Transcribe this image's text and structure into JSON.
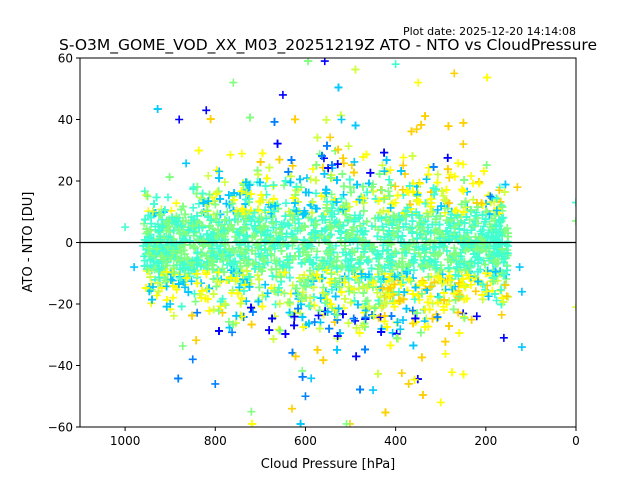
{
  "plot_date": "Plot date: 2025-12-20 14:14:08",
  "chart_data": {
    "type": "scatter",
    "title": "S-O3M_GOME_VOD_XX_M03_20251219Z ATO - NTO vs CloudPressure",
    "xlabel": "Cloud Pressure [hPa]",
    "ylabel": "ATO - NTO [DU]",
    "xlim": [
      1100,
      0
    ],
    "ylim": [
      -60,
      60
    ],
    "x_ticks": [
      1000,
      800,
      600,
      400,
      200,
      0
    ],
    "y_ticks": [
      -60,
      -40,
      -20,
      0,
      20,
      40,
      60
    ],
    "reference_line_y": 0,
    "marker": "+",
    "colormap_colors": [
      "#0000ff",
      "#0080ff",
      "#00c8ff",
      "#40ffd0",
      "#80ff80",
      "#d0ff40",
      "#ffff00",
      "#ffd000"
    ],
    "dense_region": {
      "x_range": [
        960,
        150
      ],
      "core_y_range": [
        -12,
        12
      ],
      "spread_y_range": [
        -60,
        60
      ]
    },
    "sample_points": [
      {
        "x": 1000,
        "y": 5,
        "c": "#40ffd0"
      },
      {
        "x": 980,
        "y": -8,
        "c": "#00c8ff"
      },
      {
        "x": 950,
        "y": 15,
        "c": "#80ff80"
      },
      {
        "x": 900,
        "y": -20,
        "c": "#00c8ff"
      },
      {
        "x": 880,
        "y": 40,
        "c": "#0000ff"
      },
      {
        "x": 850,
        "y": -38,
        "c": "#0080ff"
      },
      {
        "x": 820,
        "y": 43,
        "c": "#0000ff"
      },
      {
        "x": 800,
        "y": -46,
        "c": "#0080ff"
      },
      {
        "x": 760,
        "y": 52,
        "c": "#80ff80"
      },
      {
        "x": 720,
        "y": -55,
        "c": "#80ff80"
      },
      {
        "x": 650,
        "y": 48,
        "c": "#0000ff"
      },
      {
        "x": 600,
        "y": -50,
        "c": "#0080ff"
      },
      {
        "x": 520,
        "y": 40,
        "c": "#00c8ff"
      },
      {
        "x": 450,
        "y": -48,
        "c": "#00c8ff"
      },
      {
        "x": 400,
        "y": 58,
        "c": "#40ffd0"
      },
      {
        "x": 350,
        "y": 52,
        "c": "#ffff00"
      },
      {
        "x": 300,
        "y": -52,
        "c": "#ffff00"
      },
      {
        "x": 270,
        "y": 55,
        "c": "#ffd000"
      },
      {
        "x": 250,
        "y": 32,
        "c": "#ffd000"
      },
      {
        "x": 220,
        "y": -24,
        "c": "#0000ff"
      },
      {
        "x": 190,
        "y": 15,
        "c": "#0080ff"
      },
      {
        "x": 160,
        "y": -31,
        "c": "#0000ff"
      },
      {
        "x": 130,
        "y": 18,
        "c": "#ffd000"
      },
      {
        "x": 125,
        "y": -8,
        "c": "#00c8ff"
      },
      {
        "x": 120,
        "y": -16,
        "c": "#00c8ff"
      },
      {
        "x": 120,
        "y": -34,
        "c": "#00c8ff"
      },
      {
        "x": 0,
        "y": 13,
        "c": "#40ffd0"
      },
      {
        "x": 0,
        "y": 7,
        "c": "#80ff80"
      },
      {
        "x": 0,
        "y": -21,
        "c": "#d0ff40"
      }
    ]
  }
}
